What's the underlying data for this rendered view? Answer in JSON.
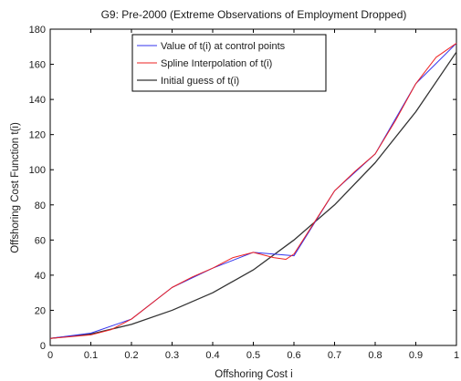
{
  "chart_data": {
    "type": "line",
    "title": "G9: Pre-2000 (Extreme Observations of Employment Dropped)",
    "xlabel": "Offshoring Cost i",
    "ylabel": "Offshoring Cost Function t(i)",
    "xlim": [
      0,
      1
    ],
    "ylim": [
      0,
      180
    ],
    "x_ticks": [
      0,
      0.1,
      0.2,
      0.3,
      0.4,
      0.5,
      0.6,
      0.7,
      0.8,
      0.9,
      1
    ],
    "x_tick_labels": [
      "0",
      "0.1",
      "0.2",
      "0.3",
      "0.4",
      "0.5",
      "0.6",
      "0.7",
      "0.8",
      "0.9",
      "1"
    ],
    "y_ticks": [
      0,
      20,
      40,
      60,
      80,
      100,
      120,
      140,
      160,
      180
    ],
    "y_tick_labels": [
      "0",
      "20",
      "40",
      "60",
      "80",
      "100",
      "120",
      "140",
      "160",
      "180"
    ],
    "grid": false,
    "legend_position": "top-center",
    "series": [
      {
        "name": "Value of t(i) at control points",
        "color": "#3333ee",
        "x": [
          0,
          0.1,
          0.2,
          0.3,
          0.4,
          0.5,
          0.6,
          0.7,
          0.8,
          0.9,
          1
        ],
        "y": [
          4,
          7,
          15,
          33,
          44,
          53,
          51,
          88,
          109,
          149,
          172
        ]
      },
      {
        "name": "Spline Interpolation of t(i)",
        "color": "#ee2222",
        "x": [
          0,
          0.05,
          0.1,
          0.15,
          0.2,
          0.25,
          0.3,
          0.35,
          0.4,
          0.45,
          0.5,
          0.55,
          0.58,
          0.6,
          0.65,
          0.7,
          0.75,
          0.8,
          0.85,
          0.9,
          0.95,
          1
        ],
        "y": [
          4,
          5,
          6,
          9,
          15,
          24,
          33,
          39,
          44,
          50,
          53,
          50,
          49,
          52,
          70,
          88,
          99,
          109,
          128,
          149,
          164,
          172
        ]
      },
      {
        "name": "Initial guess of t(i)",
        "color": "#333333",
        "x": [
          0,
          0.1,
          0.2,
          0.3,
          0.4,
          0.5,
          0.6,
          0.7,
          0.8,
          0.9,
          1
        ],
        "y": [
          4,
          6.5,
          12,
          20,
          30,
          43,
          60,
          80,
          104,
          133,
          167
        ]
      }
    ]
  }
}
